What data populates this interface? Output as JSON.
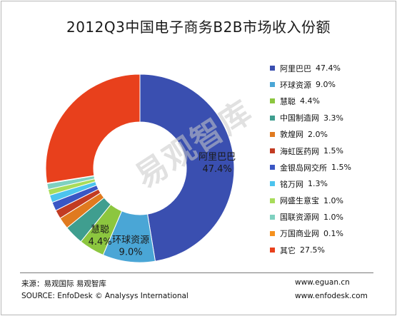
{
  "title": "2012Q3中国电子商务B2B市场收入份额",
  "chart_data": {
    "type": "pie",
    "title": "2012Q3中国电子商务B2B市场收入份额",
    "donut": true,
    "legend_position": "right",
    "slices": [
      {
        "name": "阿里巴巴",
        "value": 47.4,
        "value_label": "47.4%",
        "color": "#3a4fb0"
      },
      {
        "name": "环球资源",
        "value": 9.0,
        "value_label": "9.0%",
        "color": "#4aa6d6"
      },
      {
        "name": "慧聪",
        "value": 4.4,
        "value_label": "4.4%",
        "color": "#8cc63f"
      },
      {
        "name": "中国制造网",
        "value": 3.3,
        "value_label": "3.3%",
        "color": "#3f9e8f"
      },
      {
        "name": "敦煌网",
        "value": 2.0,
        "value_label": "2.0%",
        "color": "#e07a1f"
      },
      {
        "name": "海虹医药网",
        "value": 1.5,
        "value_label": "1.5%",
        "color": "#c23b22"
      },
      {
        "name": "金银岛网交所",
        "value": 1.5,
        "value_label": "1.5%",
        "color": "#3a56c4"
      },
      {
        "name": "铭万网",
        "value": 1.3,
        "value_label": "1.3%",
        "color": "#4cc4ee"
      },
      {
        "name": "网盛生意宝",
        "value": 1.0,
        "value_label": "1.0%",
        "color": "#a8dc5a"
      },
      {
        "name": "国联资源网",
        "value": 1.0,
        "value_label": "1.0%",
        "color": "#7fd1c0"
      },
      {
        "name": "万国商业网",
        "value": 0.1,
        "value_label": "0.1%",
        "color": "#f5911e"
      },
      {
        "name": "其它",
        "value": 27.5,
        "value_label": "27.5%",
        "color": "#e8401c"
      }
    ],
    "slice_labels": [
      {
        "name": "阿里巴巴",
        "value_label": "47.4%"
      },
      {
        "name": "环球资源",
        "value_label": "9.0%"
      },
      {
        "name": "慧聪",
        "value_label": "4.4%"
      }
    ]
  },
  "watermark": "易观智库",
  "footer": {
    "source_cn": "来源：易观国际 易观智库",
    "source_en": "SOURCE: EnfoDesk © Analysys International",
    "url1": "www.eguan.cn",
    "url2": "www.enfodesk.com"
  }
}
